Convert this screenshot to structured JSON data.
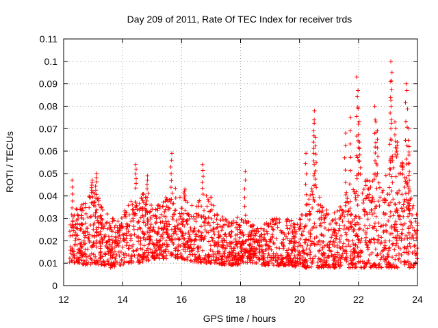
{
  "chart_data": {
    "type": "scatter",
    "title": "Day 209 of 2011, Rate Of TEC Index for receiver trds",
    "xlabel": "GPS time / hours",
    "ylabel": "ROTI / TECUs",
    "xlim": [
      12,
      24
    ],
    "ylim": [
      0,
      0.11
    ],
    "xticks": [
      12,
      14,
      16,
      18,
      20,
      22,
      24
    ],
    "xtick_labels": [
      "12",
      "14",
      "16",
      "18",
      "20",
      "22",
      "24"
    ],
    "yticks": [
      0,
      0.01,
      0.02,
      0.03,
      0.04,
      0.05,
      0.06,
      0.07,
      0.08,
      0.09,
      0.1,
      0.11
    ],
    "ytick_labels": [
      "0",
      "0.01",
      "0.02",
      "0.03",
      "0.04",
      "0.05",
      "0.06",
      "0.07",
      "0.08",
      "0.09",
      "0.1",
      "0.11"
    ],
    "grid": true,
    "marker": "+",
    "series": [
      {
        "name": "ROTI",
        "color": "#ff0000",
        "envelope_hours": [
          12.2,
          12.5,
          12.8,
          13.0,
          13.3,
          13.6,
          13.9,
          14.2,
          14.5,
          14.8,
          15.1,
          15.4,
          15.7,
          16.0,
          16.3,
          16.6,
          16.9,
          17.2,
          17.5,
          17.8,
          18.1,
          18.4,
          18.7,
          19.0,
          19.3,
          19.6,
          19.9,
          20.2,
          20.5,
          20.8,
          21.1,
          21.4,
          21.7,
          22.0,
          22.3,
          22.6,
          22.9,
          23.2,
          23.5,
          23.8,
          24.0
        ],
        "envelope_low": [
          0.01,
          0.01,
          0.009,
          0.01,
          0.009,
          0.008,
          0.009,
          0.01,
          0.01,
          0.011,
          0.012,
          0.012,
          0.012,
          0.012,
          0.011,
          0.01,
          0.01,
          0.01,
          0.009,
          0.009,
          0.01,
          0.01,
          0.009,
          0.009,
          0.009,
          0.009,
          0.008,
          0.008,
          0.008,
          0.008,
          0.008,
          0.008,
          0.008,
          0.008,
          0.008,
          0.008,
          0.008,
          0.008,
          0.008,
          0.008,
          0.008
        ],
        "envelope_high": [
          0.03,
          0.036,
          0.04,
          0.042,
          0.038,
          0.032,
          0.03,
          0.036,
          0.045,
          0.04,
          0.035,
          0.038,
          0.045,
          0.04,
          0.036,
          0.04,
          0.042,
          0.034,
          0.03,
          0.03,
          0.032,
          0.028,
          0.026,
          0.03,
          0.03,
          0.03,
          0.028,
          0.035,
          0.05,
          0.035,
          0.032,
          0.036,
          0.045,
          0.05,
          0.048,
          0.05,
          0.05,
          0.06,
          0.052,
          0.04,
          0.032
        ],
        "peaks": [
          {
            "x": 12.28,
            "y": 0.047
          },
          {
            "x": 12.95,
            "y": 0.047
          },
          {
            "x": 13.1,
            "y": 0.05
          },
          {
            "x": 14.45,
            "y": 0.054
          },
          {
            "x": 14.85,
            "y": 0.049
          },
          {
            "x": 15.65,
            "y": 0.059
          },
          {
            "x": 16.1,
            "y": 0.043
          },
          {
            "x": 16.72,
            "y": 0.054
          },
          {
            "x": 18.15,
            "y": 0.051
          },
          {
            "x": 20.22,
            "y": 0.059
          },
          {
            "x": 20.5,
            "y": 0.078
          },
          {
            "x": 20.48,
            "y": 0.074
          },
          {
            "x": 20.55,
            "y": 0.066
          },
          {
            "x": 21.55,
            "y": 0.068
          },
          {
            "x": 21.72,
            "y": 0.075
          },
          {
            "x": 21.95,
            "y": 0.093
          },
          {
            "x": 21.98,
            "y": 0.087
          },
          {
            "x": 22.0,
            "y": 0.079
          },
          {
            "x": 22.05,
            "y": 0.064
          },
          {
            "x": 22.55,
            "y": 0.08
          },
          {
            "x": 22.58,
            "y": 0.073
          },
          {
            "x": 22.65,
            "y": 0.069
          },
          {
            "x": 23.1,
            "y": 0.1
          },
          {
            "x": 23.12,
            "y": 0.095
          },
          {
            "x": 23.08,
            "y": 0.091
          },
          {
            "x": 23.25,
            "y": 0.073
          },
          {
            "x": 23.3,
            "y": 0.064
          },
          {
            "x": 23.6,
            "y": 0.09
          },
          {
            "x": 23.65,
            "y": 0.087
          },
          {
            "x": 23.7,
            "y": 0.07
          },
          {
            "x": 23.72,
            "y": 0.062
          },
          {
            "x": 23.5,
            "y": 0.055
          }
        ]
      }
    ]
  }
}
